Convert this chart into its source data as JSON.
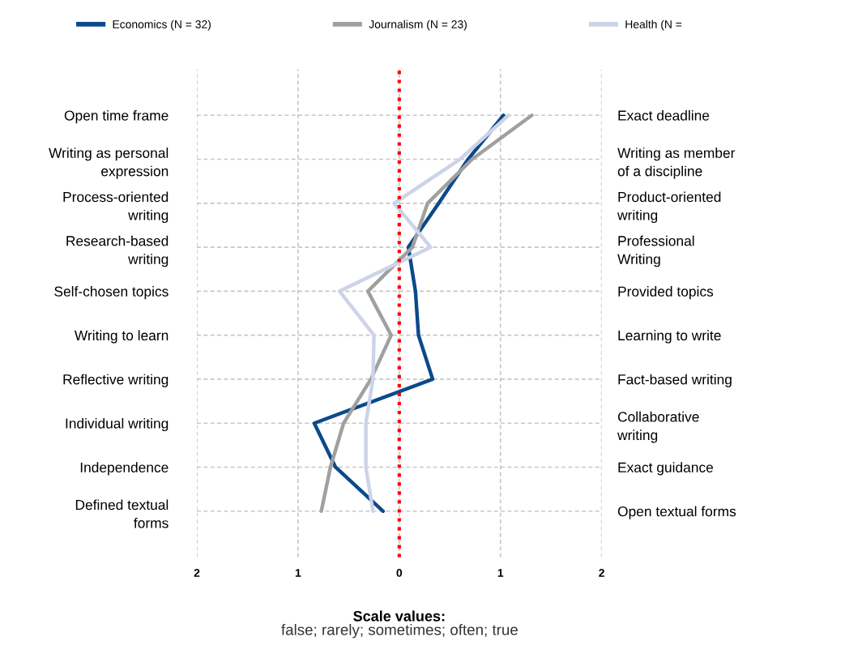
{
  "chart_data": {
    "type": "line",
    "orientation": "horizontal",
    "categories": [
      "Open time frame",
      "Writing as personal\nexpression",
      "Process-oriented\nwriting",
      "Research-based\nwriting",
      "Self-chosen topics",
      "Writing to learn",
      "Reflective writing",
      "Individual writing",
      "Independence",
      "Defined textual\nforms"
    ],
    "y2_categories": [
      "Exact deadline",
      "Writing as member\nof a discipline",
      "Product-oriented\nwriting",
      "Professional\nWriting",
      "Provided topics",
      "Learning to write",
      "Fact-based writing",
      "Collaborative\nwriting",
      "Exact guidance",
      "Open textual forms"
    ],
    "series": [
      {
        "name": "Economics (N = 32)",
        "color": "#0b4a8b",
        "values": [
          1.03,
          0.68,
          0.39,
          0.09,
          0.16,
          0.19,
          0.33,
          -0.84,
          -0.63,
          -0.16
        ]
      },
      {
        "name": "Journalism (N = 23)",
        "color": "#a0a0a0",
        "values": [
          1.31,
          0.72,
          0.28,
          0.13,
          -0.31,
          -0.08,
          -0.28,
          -0.55,
          -0.68,
          -0.77
        ]
      },
      {
        "name": "Health (N =",
        "color": "#cdd3e8",
        "values": [
          1.08,
          0.6,
          -0.05,
          0.31,
          -0.59,
          -0.25,
          -0.26,
          -0.33,
          -0.33,
          -0.26
        ]
      }
    ],
    "xlim": [
      -2,
      2
    ],
    "xticks": [
      {
        "value": -2,
        "label": "2"
      },
      {
        "value": -1,
        "label": "1"
      },
      0,
      1,
      2
    ],
    "xlabel": "Scale values:",
    "annotations": [
      "false; rarely; sometimes; often; true"
    ],
    "ref_lines": [
      {
        "axis": "x",
        "value": 0,
        "color": "#ff0000",
        "line_style": "dotted"
      }
    ],
    "grid": true,
    "legend": "top",
    "line_style": "solid",
    "marker": "none"
  }
}
